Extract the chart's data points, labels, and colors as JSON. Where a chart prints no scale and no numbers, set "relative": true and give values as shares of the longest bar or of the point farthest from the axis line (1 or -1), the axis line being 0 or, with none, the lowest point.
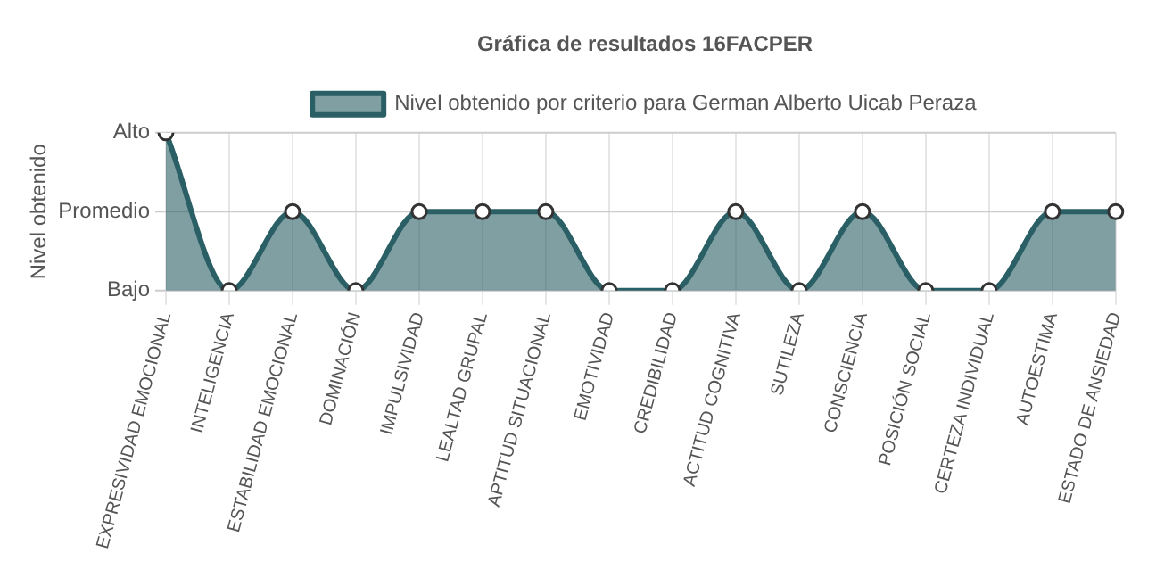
{
  "chart_data": {
    "type": "area",
    "title": "Gráfica de resultados 16FACPER",
    "ylabel": "Nivel obtenido",
    "categories": [
      "EXPRESIVIDAD EMOCIONAL",
      "INTELIGENCIA",
      "ESTABILIDAD EMOCIONAL",
      "DOMINACIÓN",
      "IMPULSIVIDAD",
      "LEALTAD GRUPAL",
      "APTITUD SITUACIONAL",
      "EMOTIVIDAD",
      "CREDIBILIDAD",
      "ACTITUD COGNITIVA",
      "SUTILEZA",
      "CONSCIENCIA",
      "POSICIÓN SOCIAL",
      "CERTEZA INDIVIDUAL",
      "AUTOESTIMA",
      "ESTADO DE ANSIEDAD"
    ],
    "series": [
      {
        "name": "Nivel obtenido por criterio para German Alberto Uicab Peraza",
        "color": "#2a5f66",
        "values": [
          1,
          0,
          0.5,
          0,
          0.5,
          0.5,
          0.5,
          0,
          0,
          0.5,
          0,
          0.5,
          0,
          0,
          0.5,
          0.5
        ]
      }
    ],
    "relative": true,
    "ref_lines": [
      {
        "axis": "y",
        "value": 1,
        "label": "Alto"
      },
      {
        "axis": "y",
        "value": 0.5,
        "label": "Promedio"
      },
      {
        "axis": "y",
        "value": 0,
        "label": "Bajo"
      }
    ],
    "grid": true,
    "legend": "top",
    "marker": "circle"
  }
}
